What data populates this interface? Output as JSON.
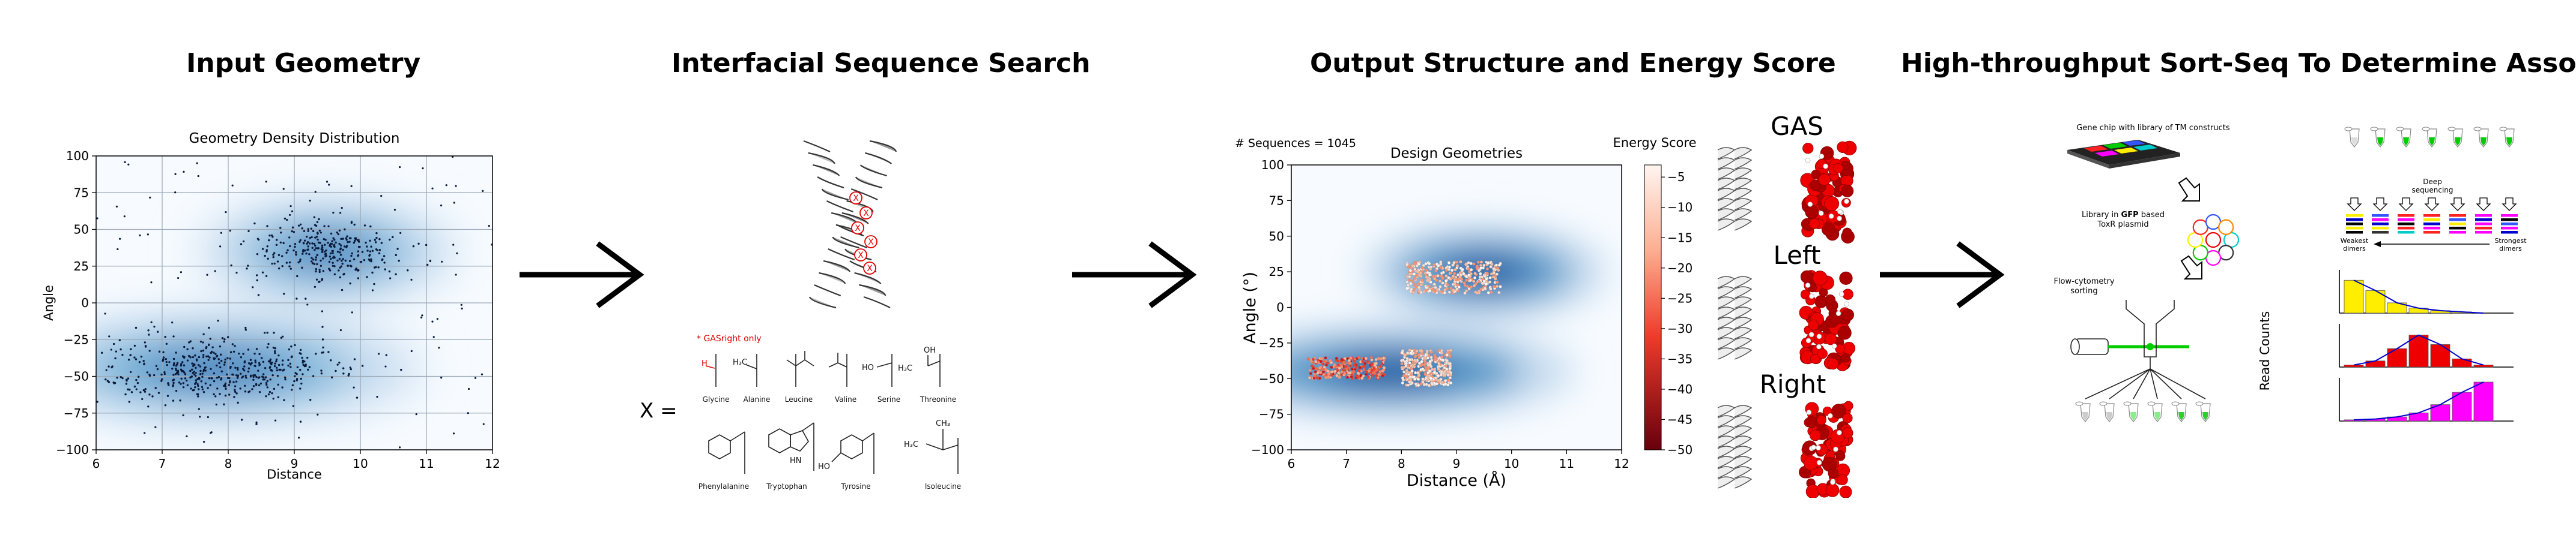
{
  "panels": {
    "p1_title": "Input Geometry",
    "p2_title": "Interfacial Sequence Search",
    "p3_title": "Output Structure and Energy Score",
    "p4_title": "High-throughput Sort-Seq To Determine Association"
  },
  "panel1_chart": {
    "type": "scatter",
    "title": "Geometry Density Distribution",
    "xlabel": "Distance",
    "ylabel": "Angle",
    "xlim": [
      6,
      12
    ],
    "ylim": [
      -100,
      100
    ],
    "xticks": [
      "6",
      "7",
      "8",
      "9",
      "10",
      "11",
      "12"
    ],
    "yticks": [
      "100",
      "75",
      "50",
      "25",
      "0",
      "−25",
      "−50",
      "−75",
      "−100"
    ],
    "xtick_values": [
      6,
      7,
      8,
      9,
      10,
      11,
      12
    ],
    "ytick_values": [
      100,
      75,
      50,
      25,
      0,
      -25,
      -50,
      -75,
      -100
    ],
    "clusters": [
      {
        "cx": 9.5,
        "cy": 35,
        "sx": 1.0,
        "sy": 13
      },
      {
        "cx": 7.8,
        "cy": -45,
        "sx": 1.6,
        "sy": 14
      }
    ],
    "grid": true
  },
  "panel2": {
    "note": "* GASright only",
    "x_equals": "X =",
    "marker": "X",
    "amino_acids": [
      "Glycine",
      "Alanine",
      "Leucine",
      "Valine",
      "Serine",
      "Threonine",
      "Phenylalanine",
      "Tryptophan",
      "Tyrosine",
      "Isoleucine"
    ],
    "mol_labels": {
      "h": "H",
      "h3c": "H₃C",
      "ho": "HO",
      "oh": "OH",
      "hn": "HN",
      "ch3": "CH₃"
    }
  },
  "panel3_chart": {
    "type": "heatmap",
    "title": "Design Geometries",
    "seq_count": "# Sequences = 1045",
    "xlabel": "Distance (Å)",
    "ylabel": "Angle (°)",
    "xlim": [
      6,
      12
    ],
    "ylim": [
      -100,
      100
    ],
    "xticks": [
      "6",
      "7",
      "8",
      "9",
      "10",
      "11",
      "12"
    ],
    "yticks": [
      "100",
      "75",
      "50",
      "25",
      "0",
      "−25",
      "−50",
      "−75",
      "−100"
    ],
    "xtick_values": [
      6,
      7,
      8,
      9,
      10,
      11,
      12
    ],
    "ytick_values": [
      100,
      75,
      50,
      25,
      0,
      -25,
      -50,
      -75,
      -100
    ],
    "colorbar_label": "Energy Score",
    "colorbar_ticks": [
      "−5",
      "−10",
      "−15",
      "−20",
      "−25",
      "−30",
      "−35",
      "−40",
      "−45",
      "−50"
    ],
    "colorbar_values": [
      -5,
      -10,
      -15,
      -20,
      -25,
      -30,
      -35,
      -40,
      -45,
      -50
    ],
    "colorbar_range": [
      -50,
      -3
    ],
    "scatter_groups": [
      {
        "x0": 8.1,
        "x1": 9.8,
        "y0": 10,
        "y1": 32
      },
      {
        "x0": 6.3,
        "x1": 7.7,
        "y0": -50,
        "y1": -35
      },
      {
        "x0": 8.0,
        "x1": 8.9,
        "y0": -55,
        "y1": -30
      }
    ]
  },
  "panel3_structures": {
    "labels": [
      "GAS",
      "Left",
      "Right"
    ]
  },
  "panel4": {
    "gene_chip": "Gene chip with library of TM constructs",
    "library_pre": "Library in ",
    "library_gfp": "GFP",
    "library_post": " based",
    "toxr": "ToxR plasmid",
    "flow1": "Flow-cytometry",
    "flow2": "sorting",
    "deep1": "Deep",
    "deep2": "sequencing",
    "weakest1": "Weakest",
    "weakest2": "dimers",
    "strongest1": "Strongest",
    "strongest2": "dimers",
    "read_counts": "Read Counts",
    "colors": {
      "green": "#00cc00",
      "yellow": "#ffee00",
      "red": "#ee0000",
      "magenta": "#ff00ff",
      "blue": "#0000cc"
    }
  },
  "panel4_histograms": [
    {
      "color": "#ffee00",
      "values": [
        0.8,
        0.55,
        0.25,
        0.12,
        0.06,
        0.03,
        0.0
      ]
    },
    {
      "color": "#ee0000",
      "values": [
        0.05,
        0.15,
        0.45,
        0.78,
        0.55,
        0.2,
        0.05
      ]
    },
    {
      "color": "#ff00ff",
      "values": [
        0.03,
        0.05,
        0.1,
        0.2,
        0.4,
        0.7,
        0.95
      ]
    }
  ]
}
